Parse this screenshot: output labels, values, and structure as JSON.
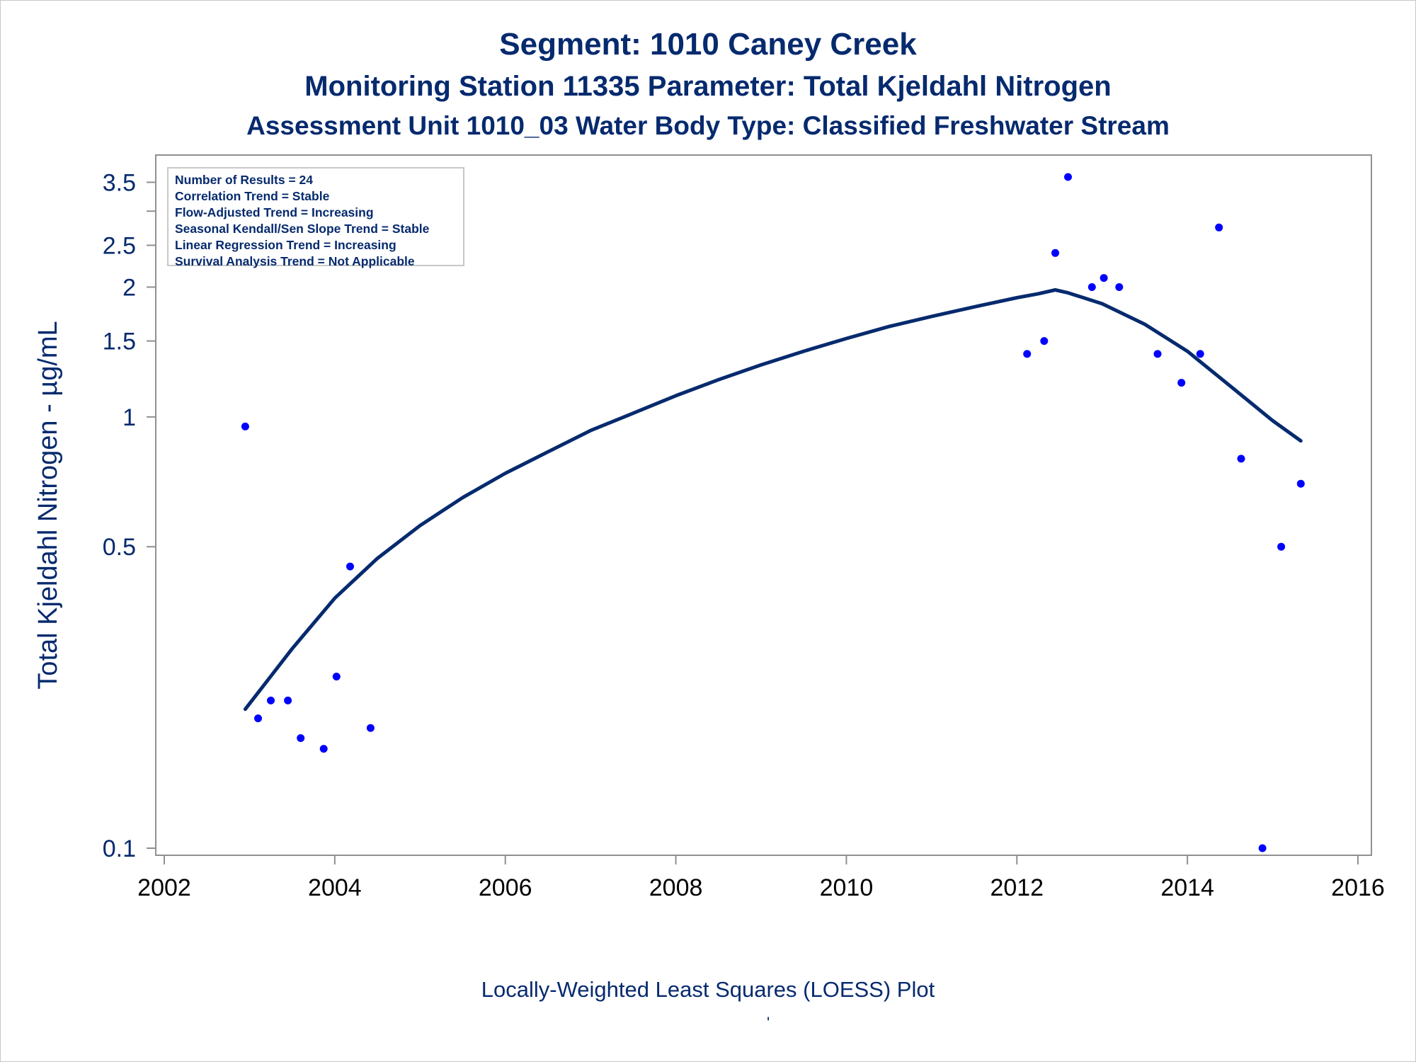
{
  "title_lines": {
    "line1": "Segment: 1010  Caney Creek",
    "line2": "Monitoring Station 11335 Parameter: Total Kjeldahl Nitrogen",
    "line3": "Assessment Unit 1010_03   Water Body Type: Classified Freshwater Stream"
  },
  "footnote": "Locally-Weighted Least Squares (LOESS) Plot",
  "footnote_mark": "'",
  "legend": [
    "Number of Results = 24",
    "Correlation Trend = Stable",
    "Flow-Adjusted Trend = Increasing",
    "Seasonal Kendall/Sen Slope Trend = Stable",
    "Linear Regression Trend = Increasing",
    "Survival Analysis Trend = Not Applicable"
  ],
  "chart_data": {
    "type": "scatter",
    "ylabel": "Total Kjeldahl Nitrogen -  µg/mL",
    "xlabel": "",
    "yscale": "log",
    "xlim": [
      2002,
      2016
    ],
    "ylim": [
      0.1,
      3.6
    ],
    "x_ticks": [
      "2002",
      "2004",
      "2006",
      "2008",
      "2010",
      "2012",
      "2014",
      "2016"
    ],
    "y_ticks": [
      {
        "value": 0.1,
        "label": "0.1"
      },
      {
        "value": 0.5,
        "label": "0.5"
      },
      {
        "value": 1,
        "label": "1"
      },
      {
        "value": 1.5,
        "label": "1.5"
      },
      {
        "value": 2,
        "label": "2"
      },
      {
        "value": 2.5,
        "label": "2.5"
      },
      {
        "value": 3,
        "label": ""
      },
      {
        "value": 3.5,
        "label": "3.5"
      }
    ],
    "grid": false,
    "legend_position": "top-left",
    "series": [
      {
        "kind": "points",
        "color": "#0000ff",
        "points": [
          {
            "x": 2002.95,
            "y": 0.95
          },
          {
            "x": 2003.1,
            "y": 0.2
          },
          {
            "x": 2003.25,
            "y": 0.22
          },
          {
            "x": 2003.45,
            "y": 0.22
          },
          {
            "x": 2003.6,
            "y": 0.18
          },
          {
            "x": 2003.87,
            "y": 0.17
          },
          {
            "x": 2004.02,
            "y": 0.25
          },
          {
            "x": 2004.18,
            "y": 0.45
          },
          {
            "x": 2004.42,
            "y": 0.19
          },
          {
            "x": 2012.12,
            "y": 1.4
          },
          {
            "x": 2012.32,
            "y": 1.5
          },
          {
            "x": 2012.45,
            "y": 2.4
          },
          {
            "x": 2012.6,
            "y": 3.6
          },
          {
            "x": 2012.88,
            "y": 2.0
          },
          {
            "x": 2013.02,
            "y": 2.1
          },
          {
            "x": 2013.2,
            "y": 2.0
          },
          {
            "x": 2013.65,
            "y": 1.4
          },
          {
            "x": 2013.93,
            "y": 1.2
          },
          {
            "x": 2014.15,
            "y": 1.4
          },
          {
            "x": 2014.37,
            "y": 2.75
          },
          {
            "x": 2014.63,
            "y": 0.8
          },
          {
            "x": 2014.88,
            "y": 0.1
          },
          {
            "x": 2015.1,
            "y": 0.5
          },
          {
            "x": 2015.33,
            "y": 0.7
          }
        ]
      },
      {
        "kind": "loess",
        "color": "#062a6e",
        "points": [
          {
            "x": 2002.95,
            "y": 0.21
          },
          {
            "x": 2003.5,
            "y": 0.29
          },
          {
            "x": 2004.0,
            "y": 0.38
          },
          {
            "x": 2004.5,
            "y": 0.47
          },
          {
            "x": 2005.0,
            "y": 0.56
          },
          {
            "x": 2005.5,
            "y": 0.65
          },
          {
            "x": 2006.0,
            "y": 0.74
          },
          {
            "x": 2006.5,
            "y": 0.83
          },
          {
            "x": 2007.0,
            "y": 0.93
          },
          {
            "x": 2007.5,
            "y": 1.02
          },
          {
            "x": 2008.0,
            "y": 1.12
          },
          {
            "x": 2008.5,
            "y": 1.22
          },
          {
            "x": 2009.0,
            "y": 1.32
          },
          {
            "x": 2009.5,
            "y": 1.42
          },
          {
            "x": 2010.0,
            "y": 1.52
          },
          {
            "x": 2010.5,
            "y": 1.62
          },
          {
            "x": 2011.0,
            "y": 1.71
          },
          {
            "x": 2011.5,
            "y": 1.8
          },
          {
            "x": 2012.0,
            "y": 1.89
          },
          {
            "x": 2012.25,
            "y": 1.93
          },
          {
            "x": 2012.45,
            "y": 1.97
          },
          {
            "x": 2012.6,
            "y": 1.94
          },
          {
            "x": 2013.0,
            "y": 1.83
          },
          {
            "x": 2013.5,
            "y": 1.64
          },
          {
            "x": 2014.0,
            "y": 1.42
          },
          {
            "x": 2014.5,
            "y": 1.18
          },
          {
            "x": 2015.0,
            "y": 0.98
          },
          {
            "x": 2015.33,
            "y": 0.88
          }
        ]
      }
    ]
  }
}
